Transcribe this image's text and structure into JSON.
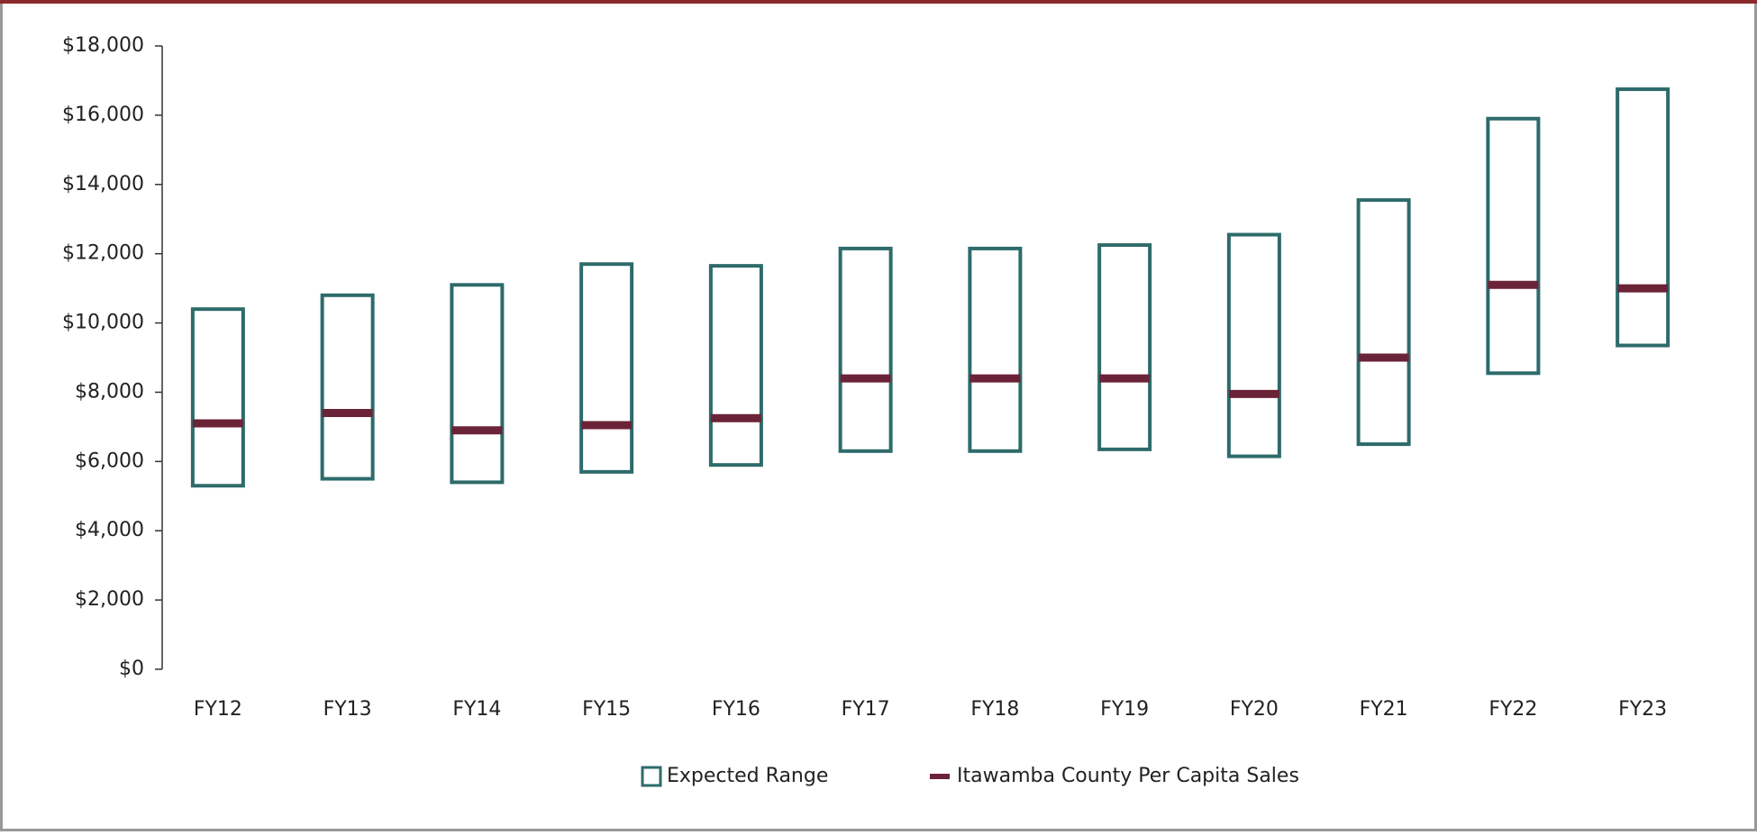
{
  "chart_data": {
    "type": "range",
    "categories": [
      "FY12",
      "FY13",
      "FY14",
      "FY15",
      "FY16",
      "FY17",
      "FY18",
      "FY19",
      "FY20",
      "FY21",
      "FY22",
      "FY23"
    ],
    "series": [
      {
        "name": "Expected Range",
        "color": "#2e6b6b",
        "low": [
          5300,
          5500,
          5400,
          5700,
          5900,
          6300,
          6300,
          6350,
          6150,
          6500,
          8550,
          9350
        ],
        "high": [
          10400,
          10800,
          11100,
          11700,
          11650,
          12150,
          12150,
          12250,
          12550,
          13550,
          15900,
          16750
        ]
      },
      {
        "name": "Itawamba County Per Capita Sales",
        "color": "#6b2337",
        "values": [
          7100,
          7400,
          6900,
          7050,
          7250,
          8400,
          8400,
          8400,
          7950,
          9000,
          11100,
          11000
        ]
      }
    ],
    "ylim": [
      0,
      18000
    ],
    "yticks": [
      {
        "value": 0,
        "label": "$0"
      },
      {
        "value": 2000,
        "label": "$2,000"
      },
      {
        "value": 4000,
        "label": "$4,000"
      },
      {
        "value": 6000,
        "label": "$6,000"
      },
      {
        "value": 8000,
        "label": "$8,000"
      },
      {
        "value": 10000,
        "label": "$10,000"
      },
      {
        "value": 12000,
        "label": "$12,000"
      },
      {
        "value": 14000,
        "label": "$14,000"
      },
      {
        "value": 16000,
        "label": "$16,000"
      },
      {
        "value": 18000,
        "label": "$18,000"
      }
    ],
    "legend": "bottom"
  }
}
